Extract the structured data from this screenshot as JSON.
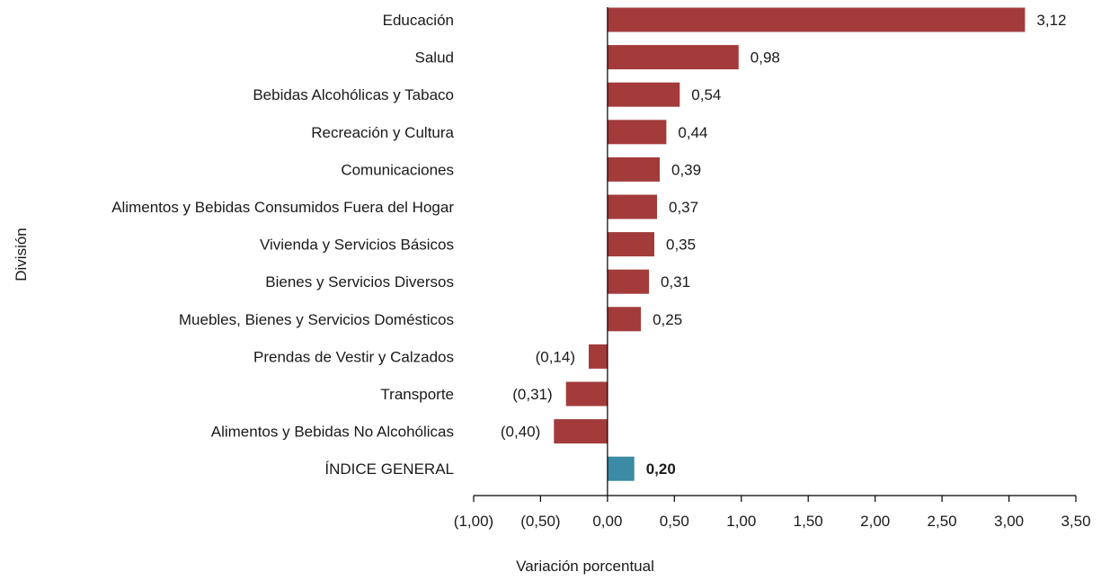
{
  "chart_data": {
    "type": "bar",
    "orientation": "horizontal",
    "title": "",
    "xlabel": "Variación porcentual",
    "ylabel": "División",
    "xlim": [
      -1.0,
      3.5
    ],
    "xticks": [
      -1.0,
      -0.5,
      0.0,
      0.5,
      1.0,
      1.5,
      2.0,
      2.5,
      3.0,
      3.5
    ],
    "xtick_labels": [
      "(1,00)",
      "(0,50)",
      "0,00",
      "0,50",
      "1,00",
      "1,50",
      "2,00",
      "2,50",
      "3,00",
      "3,50"
    ],
    "grid": false,
    "legend": "none",
    "colors": {
      "division": "#a33b3b",
      "general": "#3a8ba3"
    },
    "categories": [
      "Educación",
      "Salud",
      "Bebidas Alcohólicas y Tabaco",
      "Recreación y Cultura",
      "Comunicaciones",
      "Alimentos y Bebidas Consumidos Fuera del Hogar",
      "Vivienda y Servicios Básicos",
      "Bienes y Servicios Diversos",
      "Muebles, Bienes y Servicios Domésticos",
      "Prendas de Vestir y Calzados",
      "Transporte",
      "Alimentos y Bebidas No Alcohólicas",
      "ÍNDICE GENERAL"
    ],
    "values": [
      3.12,
      0.98,
      0.54,
      0.44,
      0.39,
      0.37,
      0.35,
      0.31,
      0.25,
      -0.14,
      -0.31,
      -0.4,
      0.2
    ],
    "value_labels": [
      "3,12",
      "0,98",
      "0,54",
      "0,44",
      "0,39",
      "0,37",
      "0,35",
      "0,31",
      "0,25",
      "(0,14)",
      "(0,31)",
      "(0,40)",
      "0,20"
    ],
    "highlight_index": 12
  }
}
